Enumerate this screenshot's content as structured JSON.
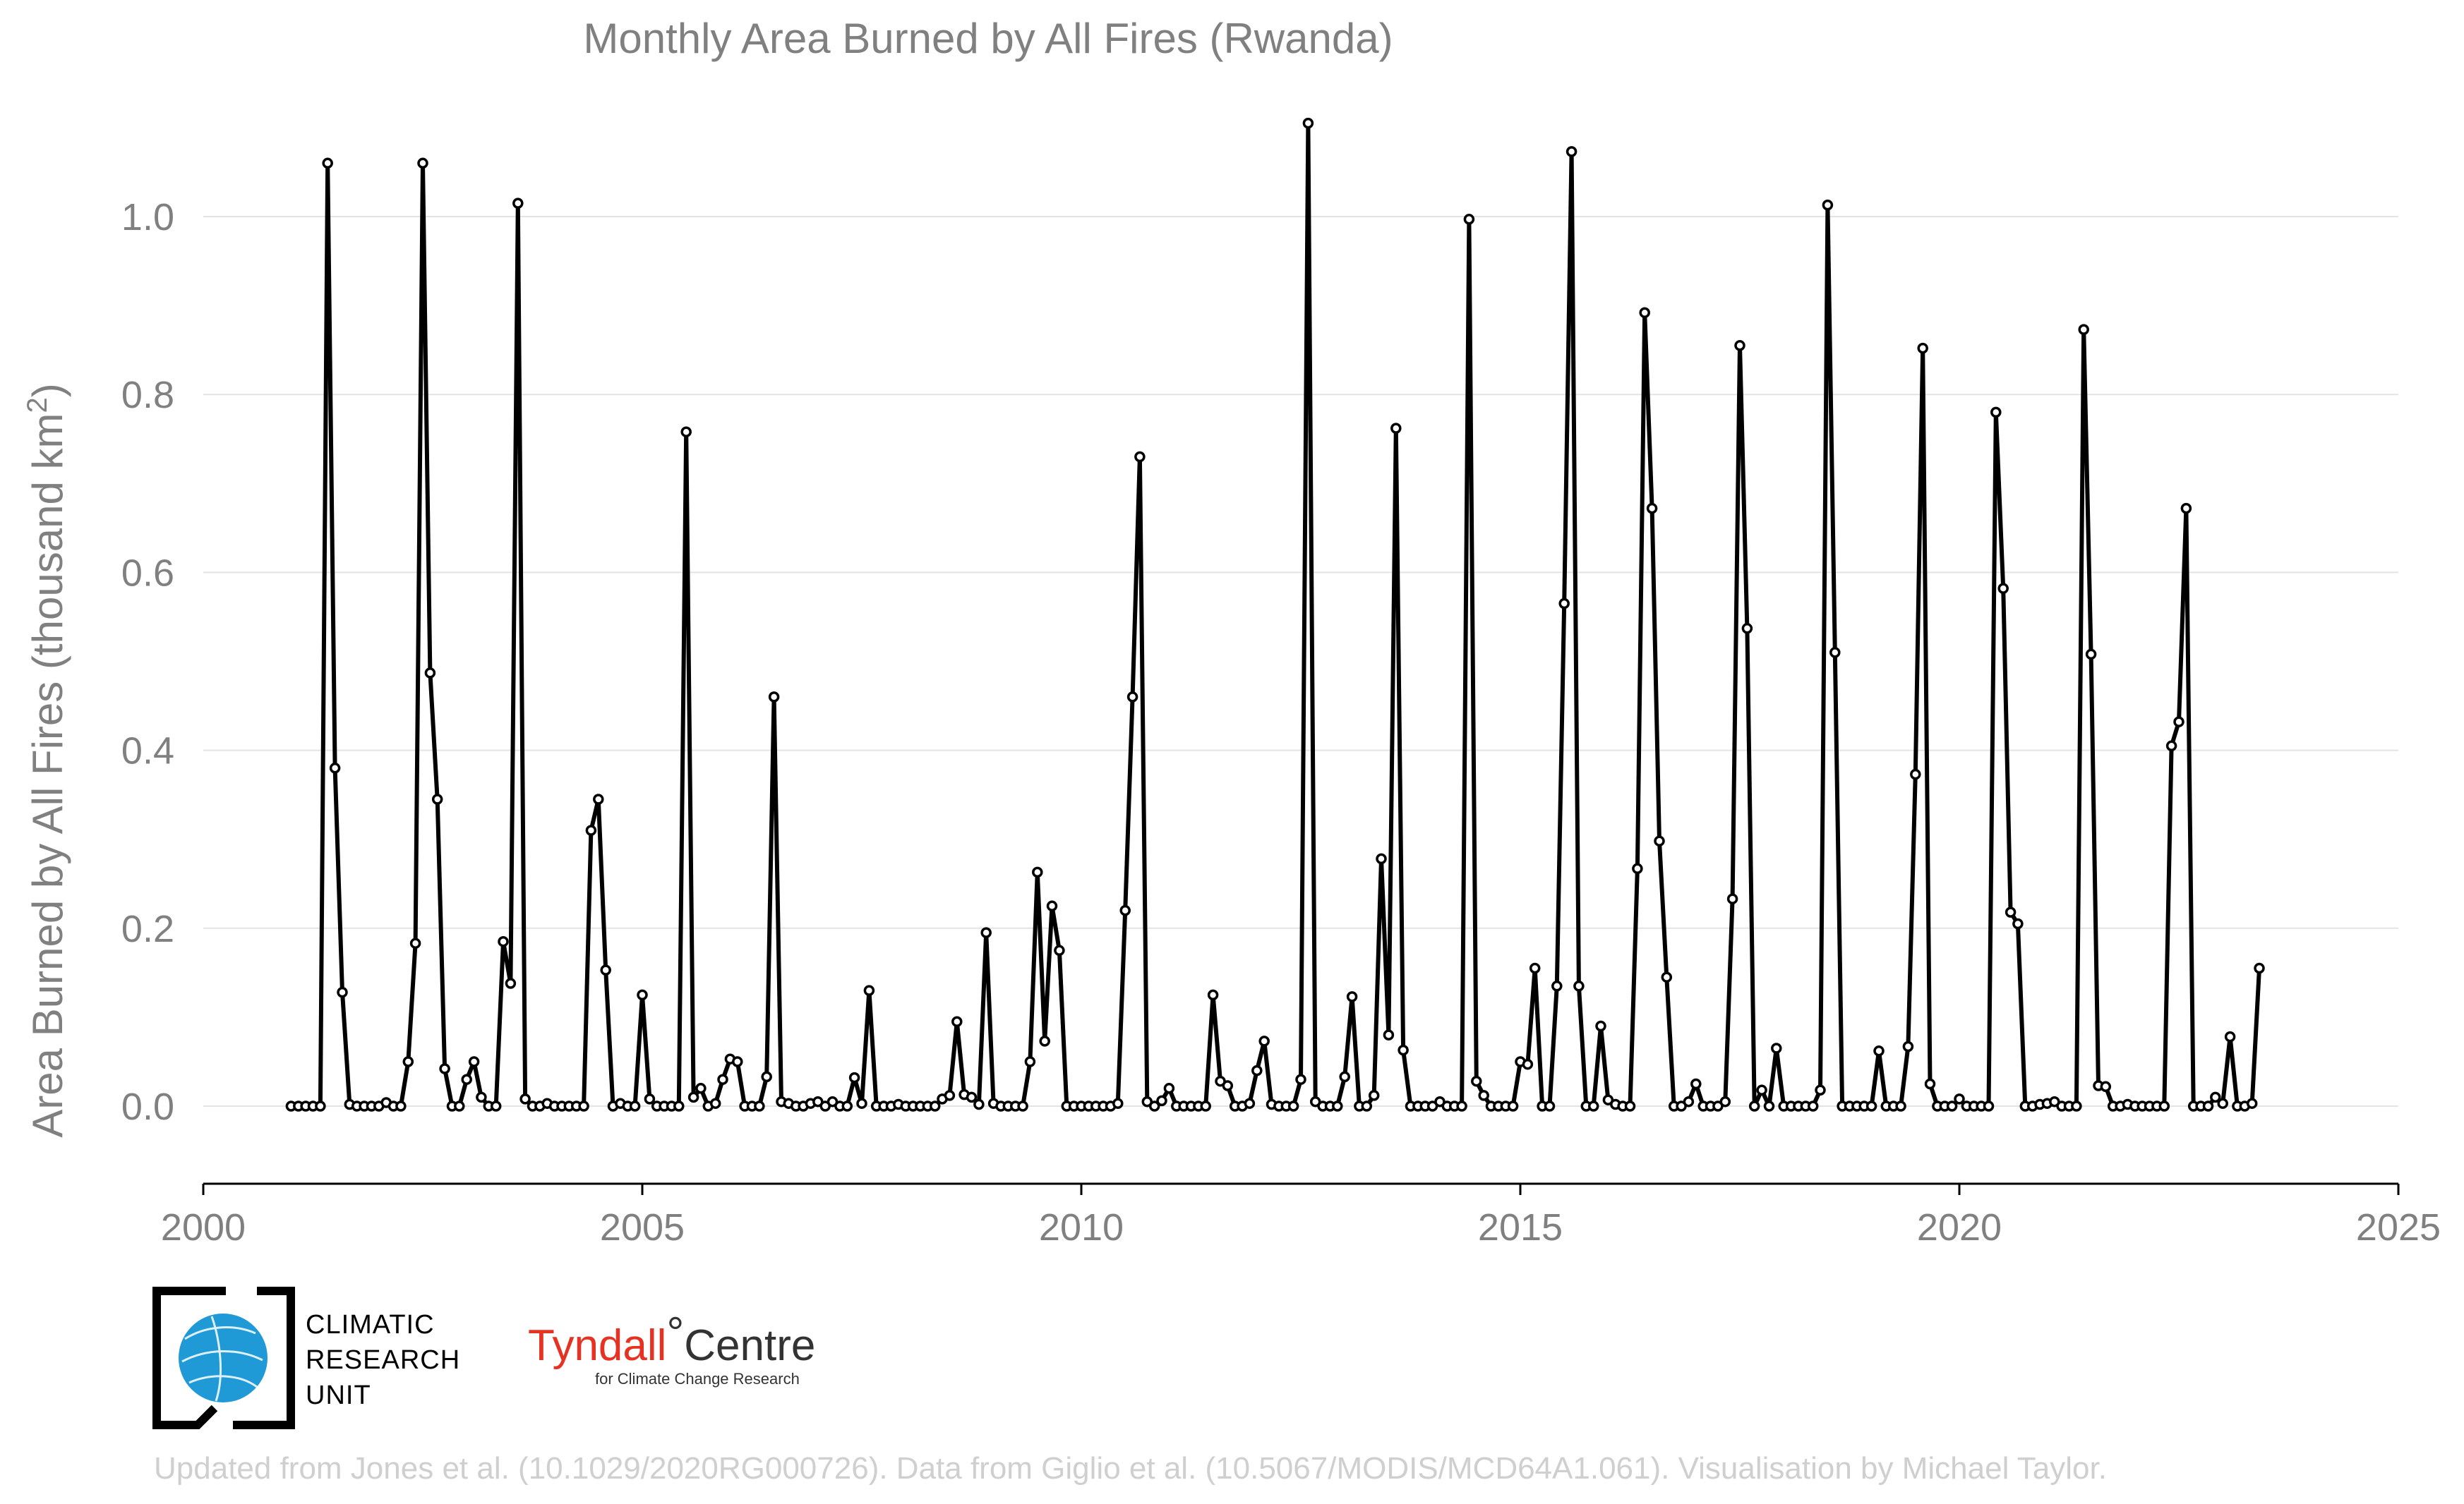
{
  "chart_data": {
    "type": "line",
    "title": "Monthly Area Burned by All Fires (Rwanda)",
    "ylabel": "Area Burned by All Fires (thousand km²)",
    "ylabel_main": "Area Burned by All Fires (thousand km",
    "ylabel_sup": "2",
    "ylabel_end": ")",
    "xlim": [
      2000,
      2025
    ],
    "ylim": [
      -0.09,
      1.12
    ],
    "xticks": [
      2000,
      2005,
      2010,
      2015,
      2020,
      2025
    ],
    "xtick_labels": [
      "2000",
      "2005",
      "2010",
      "2015",
      "2020",
      "2025"
    ],
    "yticks": [
      0.0,
      0.2,
      0.4,
      0.6,
      0.8,
      1.0
    ],
    "ytick_labels": [
      "0.0",
      "0.2",
      "0.4",
      "0.6",
      "0.8",
      "1.0"
    ],
    "grid": "horizontal",
    "x_start": "2001-01",
    "values": [
      0,
      0,
      0,
      0,
      0,
      1.06,
      0.38,
      0.128,
      0.002,
      0,
      0,
      0,
      0,
      0.004,
      0,
      0,
      0.05,
      0.183,
      1.06,
      0.487,
      0.345,
      0.042,
      0,
      0,
      0.03,
      0.05,
      0.01,
      0,
      0,
      0.185,
      0.138,
      1.015,
      0.008,
      0,
      0,
      0.003,
      0,
      0,
      0,
      0,
      0,
      0.31,
      0.345,
      0.153,
      0,
      0.003,
      0,
      0,
      0.125,
      0.008,
      0,
      0,
      0,
      0,
      0.758,
      0.01,
      0.02,
      0,
      0.003,
      0.03,
      0.053,
      0.05,
      0,
      0,
      0,
      0.033,
      0.46,
      0.005,
      0.003,
      0,
      0,
      0.003,
      0.005,
      0,
      0.005,
      0,
      0,
      0.032,
      0.003,
      0.13,
      0,
      0,
      0,
      0.002,
      0,
      0,
      0,
      0,
      0,
      0.008,
      0.012,
      0.095,
      0.013,
      0.01,
      0.002,
      0.195,
      0.003,
      0,
      0,
      0,
      0,
      0.05,
      0.263,
      0.073,
      0.225,
      0.175,
      0,
      0,
      0,
      0,
      0,
      0,
      0,
      0.003,
      0.22,
      0.46,
      0.73,
      0.005,
      0,
      0.006,
      0.02,
      0,
      0,
      0,
      0,
      0,
      0.125,
      0.028,
      0.023,
      0,
      0,
      0.003,
      0.04,
      0.073,
      0.002,
      0,
      0,
      0,
      0.03,
      1.105,
      0.005,
      0,
      0,
      0,
      0.033,
      0.123,
      0,
      0,
      0.012,
      0.278,
      0.08,
      0.762,
      0.063,
      0,
      0,
      0,
      0,
      0.005,
      0,
      0,
      0,
      0.997,
      0.028,
      0.012,
      0,
      0,
      0,
      0,
      0.05,
      0.047,
      0.155,
      0,
      0,
      0.135,
      0.565,
      1.073,
      0.135,
      0,
      0,
      0.09,
      0.007,
      0.002,
      0,
      0,
      0.267,
      0.892,
      0.672,
      0.298,
      0.145,
      0,
      0,
      0.005,
      0.025,
      0,
      0,
      0,
      0.005,
      0.233,
      0.855,
      0.537,
      0,
      0.018,
      0,
      0.065,
      0,
      0,
      0,
      0,
      0,
      0.018,
      1.013,
      0.51,
      0,
      0,
      0,
      0,
      0,
      0.062,
      0,
      0,
      0,
      0.067,
      0.373,
      0.852,
      0.025,
      0,
      0,
      0,
      0.008,
      0,
      0,
      0,
      0,
      0.78,
      0.582,
      0.218,
      0.205,
      0,
      0,
      0.002,
      0.003,
      0.005,
      0,
      0,
      0,
      0.873,
      0.508,
      0.023,
      0.022,
      0,
      0,
      0.002,
      0,
      0,
      0,
      0,
      0,
      0.405,
      0.432,
      0.672,
      0,
      0,
      0,
      0.01,
      0.003,
      0.078,
      0,
      0,
      0.003,
      0.155
    ]
  },
  "logos": {
    "cru": {
      "line1": "CLIMATIC",
      "line2": "RESEARCH",
      "line3": "UNIT",
      "globe_color": "#1f9ad6"
    },
    "tyndall": {
      "word1": "Tyndall",
      "degree": "°",
      "word2": "Centre",
      "sub": "for Climate Change Research",
      "accent": "#e63222"
    }
  },
  "footer": "Updated from Jones et al. (10.1029/2020RG000726). Data from Giglio et al. (10.5067/MODIS/MCD64A1.061). Visualisation by Michael Taylor."
}
